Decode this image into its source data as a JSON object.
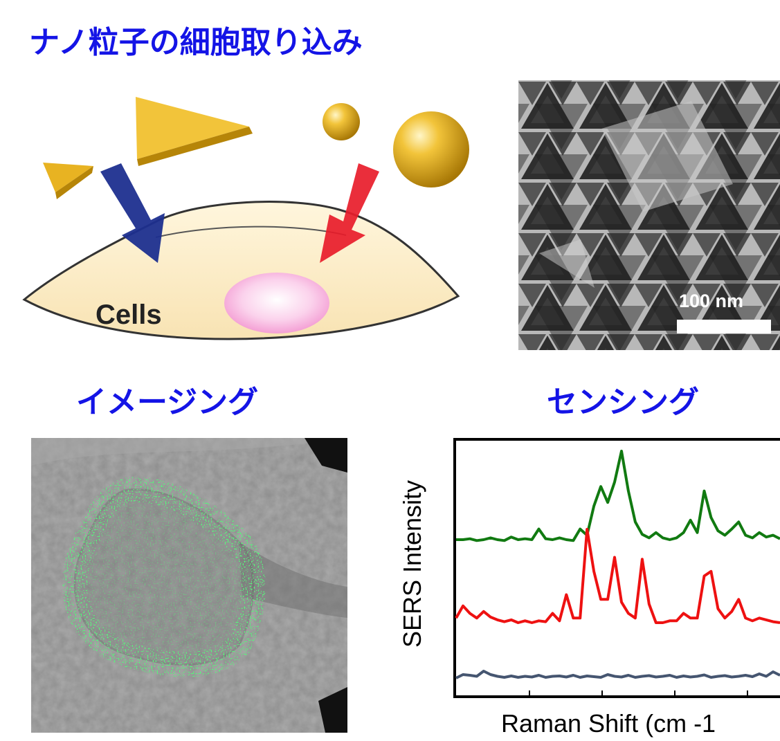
{
  "title": "ナノ粒子の細胞取り込み",
  "illustration": {
    "cells_label": "Cells",
    "arrow_colors": [
      "#1e2f8f",
      "#e81c2a"
    ],
    "particle_color": "#e8b322"
  },
  "tem": {
    "scale_label": "100 nm"
  },
  "imaging": {
    "heading": "イメージング"
  },
  "sensing": {
    "heading": "センシング",
    "chart_data": {
      "type": "line",
      "xlabel": "Raman Shift (cm -1",
      "ylabel": "SERS Intensity",
      "series": [
        {
          "color": "#117a11",
          "values": [
            0,
            0,
            0.01,
            -0.01,
            0,
            0.02,
            0,
            -0.01,
            0.03,
            0,
            0.01,
            0,
            0.12,
            0.01,
            0,
            0.02,
            0,
            -0.01,
            0.12,
            0.05,
            0.38,
            0.6,
            0.42,
            0.65,
            1.0,
            0.55,
            0.2,
            0.06,
            0.02,
            0.08,
            0.02,
            0,
            0.02,
            0.08,
            0.22,
            0.08,
            0.55,
            0.25,
            0.1,
            0.05,
            0.12,
            0.2,
            0.05,
            0.02,
            0.08,
            0.03,
            0.05,
            0.01
          ]
        },
        {
          "color": "#ee1111",
          "values": [
            0.05,
            0.18,
            0.1,
            0.05,
            0.12,
            0.06,
            0.03,
            0.01,
            0.03,
            0,
            0.02,
            0,
            0.02,
            0.01,
            0.1,
            0.02,
            0.3,
            0.05,
            0.05,
            1.0,
            0.55,
            0.25,
            0.25,
            0.7,
            0.22,
            0.1,
            0.05,
            0.68,
            0.2,
            0,
            0,
            0.02,
            0.02,
            0.1,
            0.05,
            0.05,
            0.5,
            0.55,
            0.15,
            0.05,
            0.12,
            0.25,
            0.05,
            0.02,
            0.05,
            0.03,
            0.01,
            0
          ]
        },
        {
          "color": "#455570",
          "values": [
            0,
            0.1,
            0.08,
            0.05,
            0.2,
            0.1,
            0.05,
            0.02,
            0.06,
            0.02,
            0.05,
            0.03,
            0.08,
            0.02,
            0.05,
            0.06,
            0.03,
            0.08,
            0.02,
            0.06,
            0.04,
            0.02,
            0.1,
            0.05,
            0.03,
            0.08,
            0.02,
            0.05,
            0.07,
            0.03,
            0.05,
            0.08,
            0.02,
            0.06,
            0.03,
            0.05,
            0.09,
            0.02,
            0.05,
            0.07,
            0.03,
            0.05,
            0.08,
            0.04,
            0.12,
            0.05,
            0.18,
            0.08
          ]
        }
      ]
    }
  }
}
